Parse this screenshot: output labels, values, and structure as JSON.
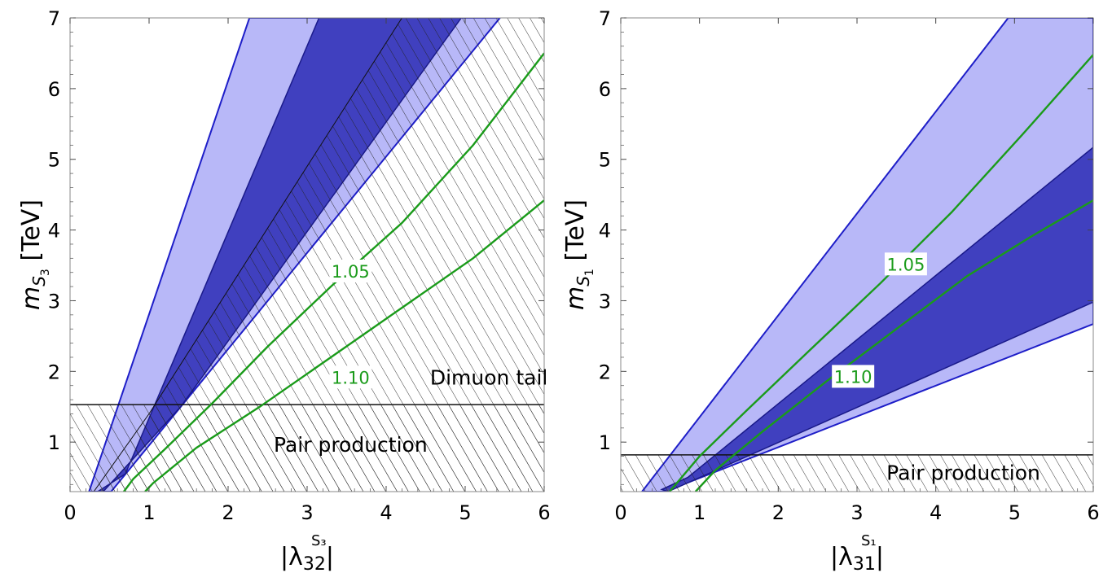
{
  "chart_data": [
    {
      "type": "area",
      "panel": "left",
      "xlabel_math": {
        "base": "|λ",
        "sup": "S₃",
        "sub": "32",
        "close": "|"
      },
      "ylabel_math": {
        "base": "m",
        "sub": "S",
        "subsub": "3",
        "unit": "[TeV]"
      },
      "xlim": [
        0,
        6
      ],
      "ylim": [
        0.3,
        7
      ],
      "xticks": [
        "0",
        "1",
        "2",
        "3",
        "4",
        "5",
        "6"
      ],
      "yticks": [
        "1",
        "2",
        "3",
        "4",
        "5",
        "6",
        "7"
      ],
      "colors": {
        "band_1sigma": "#4040bf",
        "band_2sigma": "#b8b8f8",
        "edge": "#1e1ec8",
        "contour": "#1a9b1a"
      },
      "band_2sigma": [
        [
          0.24,
          0.3
        ],
        [
          2.27,
          7.0
        ],
        [
          5.44,
          7.0
        ],
        [
          0.52,
          0.3
        ]
      ],
      "band_1sigma": [
        [
          0.35,
          0.3
        ],
        [
          0.7,
          0.55
        ],
        [
          3.15,
          7.0
        ],
        [
          4.95,
          7.0
        ],
        [
          1.4,
          1.5
        ],
        [
          0.42,
          0.3
        ]
      ],
      "hatched_regions": [
        {
          "name": "Dimuon tail",
          "boundary": [
            [
              0.3,
              0.3
            ],
            [
              1.0,
              1.4
            ],
            [
              4.2,
              7.0
            ],
            [
              6.0,
              7.0
            ],
            [
              6.0,
              0.3
            ]
          ]
        },
        {
          "name": "Pair production",
          "y_max": 1.53
        }
      ],
      "pair_production_line": 1.53,
      "contours": [
        {
          "label": "1.05",
          "points": [
            [
              0.68,
              0.3
            ],
            [
              0.8,
              0.48
            ],
            [
              1.2,
              0.9
            ],
            [
              1.8,
              1.55
            ],
            [
              2.5,
              2.35
            ],
            [
              3.3,
              3.2
            ],
            [
              4.2,
              4.1
            ],
            [
              5.1,
              5.2
            ],
            [
              6.0,
              6.5
            ]
          ]
        },
        {
          "label": "1.10",
          "points": [
            [
              0.95,
              0.3
            ],
            [
              1.05,
              0.42
            ],
            [
              1.6,
              0.92
            ],
            [
              2.4,
              1.5
            ],
            [
              3.3,
              2.2
            ],
            [
              4.2,
              2.9
            ],
            [
              5.1,
              3.6
            ],
            [
              6.0,
              4.42
            ]
          ]
        }
      ],
      "annotations": [
        {
          "text": "Dimuon tail",
          "x": 5.3,
          "y": 1.92
        },
        {
          "text": "Pair production",
          "x": 3.55,
          "y": 0.97
        }
      ],
      "contour_labels": [
        {
          "text": "1.05",
          "x": 3.55,
          "y": 3.42
        },
        {
          "text": "1.10",
          "x": 3.55,
          "y": 1.92
        }
      ]
    },
    {
      "type": "area",
      "panel": "right",
      "xlabel_math": {
        "base": "|λ",
        "sup": "S₁",
        "sub": "31",
        "close": "|"
      },
      "ylabel_math": {
        "base": "m",
        "sub": "S",
        "subsub": "1",
        "unit": "[TeV]"
      },
      "xlim": [
        0,
        6
      ],
      "ylim": [
        0.3,
        7
      ],
      "xticks": [
        "0",
        "1",
        "2",
        "3",
        "4",
        "5",
        "6"
      ],
      "yticks": [
        "1",
        "2",
        "3",
        "4",
        "5",
        "6",
        "7"
      ],
      "colors": {
        "band_1sigma": "#4040bf",
        "band_2sigma": "#b8b8f8",
        "edge": "#1e1ec8",
        "contour": "#1a9b1a"
      },
      "band_2sigma": [
        [
          0.27,
          0.3
        ],
        [
          4.92,
          7.0
        ],
        [
          6.0,
          7.0
        ],
        [
          6.0,
          2.67
        ],
        [
          0.56,
          0.3
        ]
      ],
      "band_1sigma": [
        [
          0.52,
          0.33
        ],
        [
          0.6,
          0.3
        ],
        [
          6.0,
          2.98
        ],
        [
          6.0,
          5.17
        ],
        [
          0.85,
          0.5
        ]
      ],
      "hatched_regions": [
        {
          "name": "Pair production",
          "y_max": 0.82
        }
      ],
      "pair_production_line": 0.82,
      "contours": [
        {
          "label": "1.05",
          "points": [
            [
              0.62,
              0.3
            ],
            [
              1.0,
              0.8
            ],
            [
              1.6,
              1.45
            ],
            [
              2.4,
              2.3
            ],
            [
              3.3,
              3.25
            ],
            [
              4.2,
              4.25
            ],
            [
              5.1,
              5.35
            ],
            [
              6.0,
              6.48
            ]
          ]
        },
        {
          "label": "1.10",
          "points": [
            [
              0.95,
              0.3
            ],
            [
              1.2,
              0.6
            ],
            [
              1.8,
              1.15
            ],
            [
              2.6,
              1.85
            ],
            [
              3.5,
              2.6
            ],
            [
              4.4,
              3.35
            ],
            [
              5.2,
              3.9
            ],
            [
              6.0,
              4.42
            ]
          ]
        }
      ],
      "annotations": [
        {
          "text": "Pair production",
          "x": 4.35,
          "y": 0.57
        }
      ],
      "contour_labels": [
        {
          "text": "1.05",
          "x": 3.62,
          "y": 3.52
        },
        {
          "text": "1.10",
          "x": 2.95,
          "y": 1.93
        }
      ]
    }
  ]
}
